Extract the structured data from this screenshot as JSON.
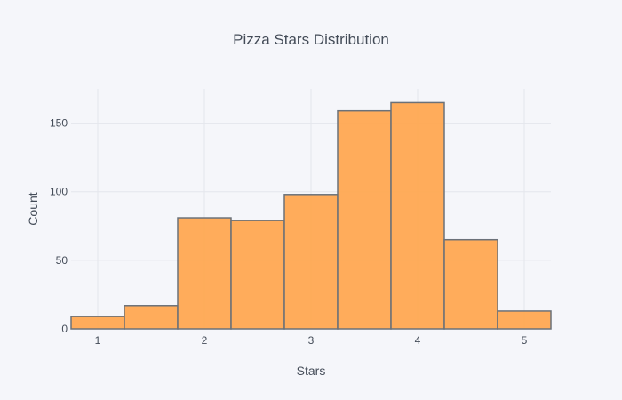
{
  "chart_data": {
    "type": "bar",
    "title": "Pizza Stars Distribution",
    "xlabel": "Stars",
    "ylabel": "Count",
    "x_range": [
      0.75,
      5.25
    ],
    "ylim": [
      0,
      175
    ],
    "bin_width": 0.5,
    "bins": [
      {
        "start": 0.75,
        "end": 1.25,
        "count": 9
      },
      {
        "start": 1.25,
        "end": 1.75,
        "count": 17
      },
      {
        "start": 1.75,
        "end": 2.25,
        "count": 81
      },
      {
        "start": 2.25,
        "end": 2.75,
        "count": 79
      },
      {
        "start": 2.75,
        "end": 3.25,
        "count": 98
      },
      {
        "start": 3.25,
        "end": 3.75,
        "count": 159
      },
      {
        "start": 3.75,
        "end": 4.25,
        "count": 165
      },
      {
        "start": 4.25,
        "end": 4.75,
        "count": 65
      },
      {
        "start": 4.75,
        "end": 5.25,
        "count": 13
      }
    ],
    "x_ticks": [
      1,
      2,
      3,
      4,
      5
    ],
    "y_ticks": [
      0,
      50,
      100,
      150
    ],
    "grid": true,
    "colors": {
      "bar_fill": "#ffa852",
      "bar_outline": "#6b7179",
      "background": "#f5f6fa",
      "grid": "#e4e6ec",
      "text": "#444c58"
    }
  }
}
